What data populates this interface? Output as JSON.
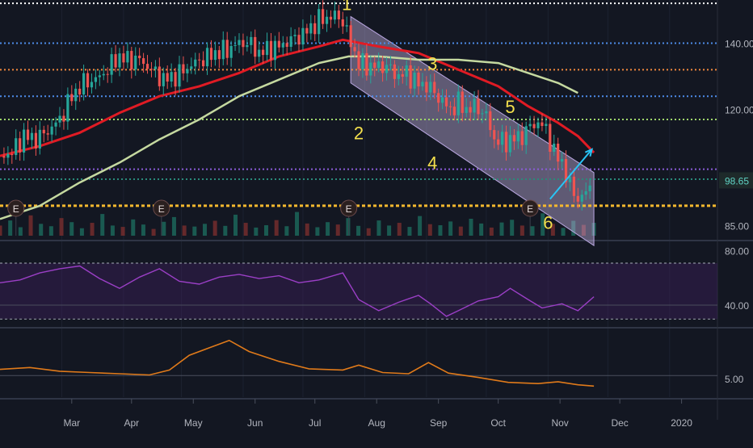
{
  "chart_data": [
    {
      "type": "candlestick",
      "panel": "price",
      "x_axis_labels": [
        "Mar",
        "Apr",
        "May",
        "Jun",
        "Jul",
        "Aug",
        "Sep",
        "Oct",
        "Nov",
        "Dec",
        "2020"
      ],
      "y_ticks": [
        "140.00",
        "120.00",
        "85.00"
      ],
      "last_price": "98.65",
      "ylim": [
        81,
        153
      ],
      "close_path": [
        [
          0,
          106
        ],
        [
          6,
          107
        ],
        [
          12,
          112
        ],
        [
          18,
          111
        ],
        [
          25,
          114
        ],
        [
          30,
          117
        ],
        [
          36,
          124
        ],
        [
          42,
          128
        ],
        [
          48,
          129
        ],
        [
          54,
          132
        ],
        [
          59,
          136
        ],
        [
          64,
          135
        ],
        [
          70,
          135
        ],
        [
          76,
          132
        ],
        [
          82,
          129
        ],
        [
          88,
          130
        ],
        [
          95,
          133
        ],
        [
          101,
          135
        ],
        [
          108,
          137
        ],
        [
          114,
          138
        ],
        [
          120,
          140
        ],
        [
          125,
          140
        ],
        [
          130,
          137
        ],
        [
          134,
          138
        ],
        [
          140,
          139
        ],
        [
          146,
          141
        ],
        [
          150,
          142
        ],
        [
          155,
          144
        ],
        [
          160,
          147
        ],
        [
          166,
          148
        ],
        [
          171,
          148
        ],
        [
          176,
          140
        ],
        [
          180,
          134
        ],
        [
          185,
          133
        ],
        [
          190,
          133
        ],
        [
          194,
          133
        ],
        [
          200,
          130
        ],
        [
          204,
          131
        ],
        [
          209,
          128
        ],
        [
          215,
          127
        ],
        [
          221,
          123
        ],
        [
          226,
          120
        ],
        [
          230,
          122
        ],
        [
          234,
          120
        ],
        [
          239,
          121
        ],
        [
          244,
          118
        ],
        [
          248,
          111
        ],
        [
          253,
          110
        ],
        [
          257,
          111
        ],
        [
          262,
          112
        ],
        [
          266,
          115
        ],
        [
          270,
          116
        ],
        [
          274,
          114
        ],
        [
          278,
          107
        ],
        [
          282,
          104
        ],
        [
          286,
          97
        ],
        [
          290,
          93
        ],
        [
          293,
          94
        ],
        [
          297,
          98
        ]
      ],
      "series": [
        {
          "name": "",
          "color": "#e01b24",
          "values": [
            [
              0,
              106
            ],
            [
              20,
              109
            ],
            [
              40,
              113
            ],
            [
              60,
              119
            ],
            [
              80,
              124
            ],
            [
              100,
              127
            ],
            [
              120,
              131
            ],
            [
              140,
              136
            ],
            [
              160,
              139
            ],
            [
              172,
              141
            ],
            [
              190,
              139
            ],
            [
              210,
              137
            ],
            [
              230,
              132
            ],
            [
              250,
              127
            ],
            [
              265,
              121
            ],
            [
              280,
              116
            ],
            [
              290,
              112
            ],
            [
              298,
              107
            ]
          ]
        },
        {
          "name": "",
          "color": "#c5d9a0",
          "values": [
            [
              0,
              87
            ],
            [
              20,
              91
            ],
            [
              40,
              98
            ],
            [
              60,
              104
            ],
            [
              80,
              111
            ],
            [
              100,
              117
            ],
            [
              120,
              124
            ],
            [
              140,
              129
            ],
            [
              160,
              134
            ],
            [
              175,
              136
            ],
            [
              190,
              136
            ],
            [
              210,
              135
            ],
            [
              230,
              135
            ],
            [
              250,
              134
            ],
            [
              265,
              131
            ],
            [
              280,
              128
            ],
            [
              290,
              125
            ]
          ]
        }
      ],
      "levels": [
        {
          "value": 152,
          "color": "#ffffff",
          "style": "dotted"
        },
        {
          "value": 140,
          "color": "#4c8be8",
          "style": "dotted"
        },
        {
          "value": 132,
          "color": "#f0883e",
          "style": "dotted"
        },
        {
          "value": 124,
          "color": "#4c8be8",
          "style": "dotted"
        },
        {
          "value": 117,
          "color": "#9fd66b",
          "style": "dotted"
        },
        {
          "value": 102,
          "color": "#8a5cd8",
          "style": "dotted"
        },
        {
          "value": 99,
          "color": "#2a8a7a",
          "style": "dotted"
        },
        {
          "value": 91,
          "color": "#f5b82e",
          "style": "dashed"
        }
      ],
      "channel": {
        "upper": [
          [
            176,
            148
          ],
          [
            298,
            101
          ]
        ],
        "lower": [
          [
            176,
            128
          ],
          [
            298,
            79
          ]
        ],
        "color": "#c8b8e8"
      },
      "arrow": {
        "from": [
          276,
          93
        ],
        "to": [
          297,
          108
        ],
        "color": "#29c5f6"
      },
      "wave_labels": [
        {
          "label": "1",
          "x": 174,
          "y": 150
        },
        {
          "label": "2",
          "x": 180,
          "y": 111
        },
        {
          "label": "3",
          "x": 217,
          "y": 132
        },
        {
          "label": "4",
          "x": 217,
          "y": 102
        },
        {
          "label": "5",
          "x": 256,
          "y": 119
        },
        {
          "label": "6",
          "x": 275,
          "y": 84
        }
      ],
      "earnings_markers": [
        {
          "x": 8,
          "label": "E"
        },
        {
          "x": 81,
          "label": "E"
        },
        {
          "x": 175,
          "label": "E"
        },
        {
          "x": 266,
          "label": "E"
        }
      ],
      "volume": {
        "max": 100,
        "values": [
          30,
          45,
          25,
          60,
          35,
          28,
          52,
          40,
          22,
          38,
          64,
          30,
          26,
          48,
          33,
          20,
          41,
          55,
          30,
          27,
          35,
          44,
          29,
          62,
          38,
          24,
          31,
          46,
          28,
          70,
          36,
          25,
          40,
          33,
          52,
          29,
          22,
          45,
          30,
          38,
          26,
          58,
          34,
          31,
          42,
          27,
          50,
          36,
          24,
          39,
          47,
          30,
          28,
          66,
          35,
          23,
          44,
          32,
          38
        ]
      }
    },
    {
      "type": "line",
      "panel": "rsi",
      "y_ticks": [
        "80.00",
        "40.00"
      ],
      "ylim": [
        25,
        85
      ],
      "bands": {
        "upper": 70,
        "lower": 30,
        "mid": 40
      },
      "series": [
        {
          "name": "",
          "color": "#9b3fc6",
          "values": [
            [
              0,
              56
            ],
            [
              10,
              58
            ],
            [
              20,
              63
            ],
            [
              30,
              66
            ],
            [
              40,
              68
            ],
            [
              50,
              59
            ],
            [
              60,
              52
            ],
            [
              70,
              60
            ],
            [
              80,
              66
            ],
            [
              90,
              57
            ],
            [
              100,
              55
            ],
            [
              110,
              60
            ],
            [
              120,
              62
            ],
            [
              130,
              59
            ],
            [
              140,
              61
            ],
            [
              150,
              56
            ],
            [
              160,
              58
            ],
            [
              172,
              63
            ],
            [
              180,
              44
            ],
            [
              190,
              36
            ],
            [
              200,
              42
            ],
            [
              210,
              47
            ],
            [
              216,
              41
            ],
            [
              224,
              32
            ],
            [
              230,
              36
            ],
            [
              240,
              43
            ],
            [
              250,
              46
            ],
            [
              256,
              52
            ],
            [
              265,
              44
            ],
            [
              272,
              38
            ],
            [
              282,
              41
            ],
            [
              290,
              36
            ],
            [
              298,
              46
            ]
          ]
        }
      ]
    },
    {
      "type": "line",
      "panel": "indicator",
      "y_ticks": [
        "5.00"
      ],
      "ylim": [
        2,
        13
      ],
      "series": [
        {
          "name": "",
          "color": "#e07a1a",
          "values": [
            [
              0,
              6.5
            ],
            [
              15,
              6.8
            ],
            [
              30,
              6.2
            ],
            [
              45,
              6.0
            ],
            [
              60,
              5.8
            ],
            [
              75,
              5.6
            ],
            [
              85,
              6.4
            ],
            [
              95,
              8.8
            ],
            [
              105,
              10.0
            ],
            [
              115,
              11.2
            ],
            [
              125,
              9.4
            ],
            [
              140,
              7.8
            ],
            [
              155,
              6.6
            ],
            [
              172,
              6.4
            ],
            [
              180,
              7.2
            ],
            [
              192,
              6.0
            ],
            [
              205,
              5.8
            ],
            [
              215,
              7.6
            ],
            [
              225,
              5.9
            ],
            [
              240,
              5.2
            ],
            [
              255,
              4.4
            ],
            [
              270,
              4.2
            ],
            [
              280,
              4.5
            ],
            [
              290,
              4.0
            ],
            [
              298,
              3.8
            ]
          ]
        }
      ]
    }
  ]
}
